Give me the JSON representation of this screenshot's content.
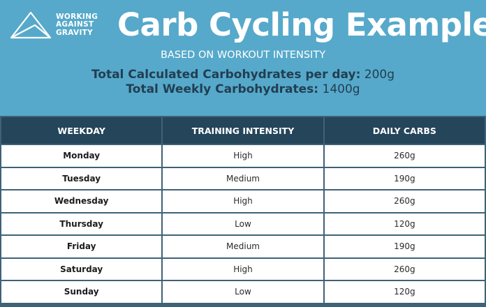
{
  "logo": {
    "line1": "WORKING",
    "line2": "AGAINST",
    "line3": "GRAVITY",
    "icon": "mountain-triangle-logo-icon"
  },
  "title": "Carb Cycling Example",
  "subtitle": "BASED ON WORKOUT INTENSITY",
  "totals": {
    "daily_label": "Total Calculated Carbohydrates per day:",
    "daily_value": "200g",
    "weekly_label": "Total Weekly Carbohydrates:",
    "weekly_value": "1400g"
  },
  "table": {
    "headers": [
      "WEEKDAY",
      "TRAINING INTENSITY",
      "DAILY CARBS"
    ],
    "rows": [
      {
        "day": "Monday",
        "intensity": "High",
        "carbs": "260g"
      },
      {
        "day": "Tuesday",
        "intensity": "Medium",
        "carbs": "190g"
      },
      {
        "day": "Wednesday",
        "intensity": "High",
        "carbs": "260g"
      },
      {
        "day": "Thursday",
        "intensity": "Low",
        "carbs": "120g"
      },
      {
        "day": "Friday",
        "intensity": "Medium",
        "carbs": "190g"
      },
      {
        "day": "Saturday",
        "intensity": "High",
        "carbs": "260g"
      },
      {
        "day": "Sunday",
        "intensity": "Low",
        "carbs": "120g"
      }
    ]
  },
  "colors": {
    "background": "#56a9ca",
    "header_bg": "#24455a",
    "text_dark": "#223e52"
  }
}
